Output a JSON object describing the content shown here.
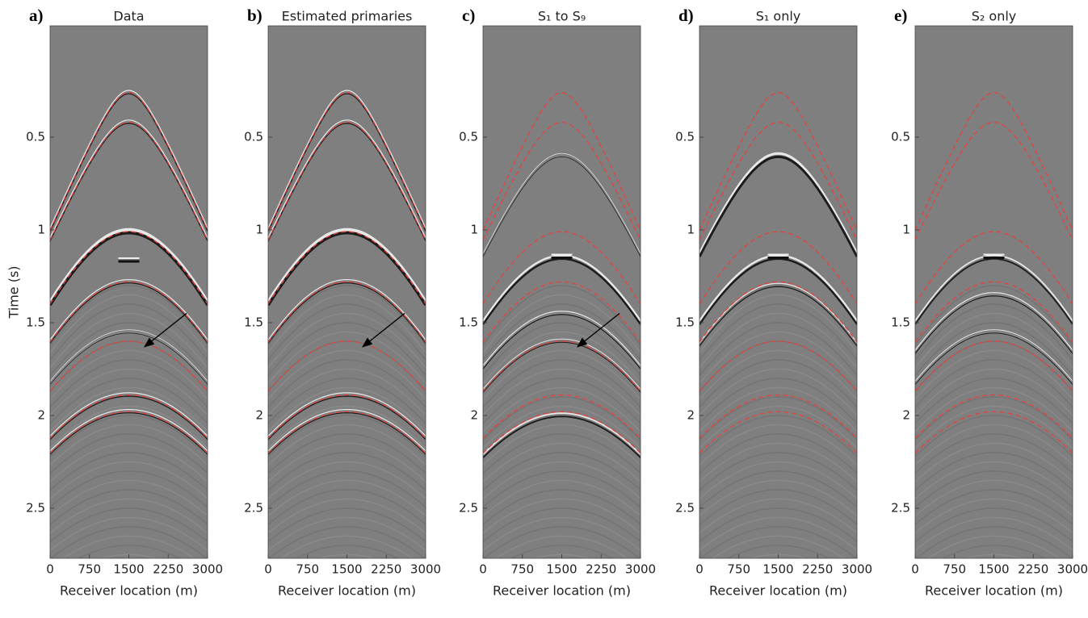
{
  "chart_data": [
    {
      "type": "seismic",
      "panel_label": "a)",
      "title": "Data",
      "xlabel": "Receiver location (m)",
      "ylabel": "Time (s)",
      "xlim": [
        0,
        3000
      ],
      "xticks": [
        0,
        750,
        1500,
        2250,
        3000
      ],
      "ylim": [
        -0.1,
        2.77
      ],
      "yticks": [
        0.5,
        1,
        1.5,
        2,
        2.5
      ]
    },
    {
      "type": "seismic",
      "panel_label": "b)",
      "title": "Estimated primaries",
      "xlabel": "Receiver location (m)",
      "xlim": [
        0,
        3000
      ],
      "xticks": [
        0,
        750,
        1500,
        2250,
        3000
      ],
      "ylim": [
        -0.1,
        2.77
      ],
      "yticks": [
        0.5,
        1,
        1.5,
        2,
        2.5
      ]
    },
    {
      "type": "seismic",
      "panel_label": "c)",
      "title": "S₁ to S₉",
      "xlabel": "Receiver location (m)",
      "xlim": [
        0,
        3000
      ],
      "xticks": [
        0,
        750,
        1500,
        2250,
        3000
      ],
      "ylim": [
        -0.1,
        2.77
      ],
      "yticks": [
        0.5,
        1,
        1.5,
        2,
        2.5
      ]
    },
    {
      "type": "seismic",
      "panel_label": "d)",
      "title": "S₁ only",
      "xlabel": "Receiver location (m)",
      "xlim": [
        0,
        3000
      ],
      "xticks": [
        0,
        750,
        1500,
        2250,
        3000
      ],
      "ylim": [
        -0.1,
        2.77
      ],
      "yticks": [
        0.5,
        1,
        1.5,
        2,
        2.5
      ]
    },
    {
      "type": "seismic",
      "panel_label": "e)",
      "title": "S₂ only",
      "xlabel": "Receiver location (m)",
      "xlim": [
        0,
        3000
      ],
      "xticks": [
        0,
        750,
        1500,
        2250,
        3000
      ],
      "ylim": [
        -0.1,
        2.77
      ],
      "yticks": [
        0.5,
        1,
        1.5,
        2,
        2.5
      ]
    }
  ]
}
